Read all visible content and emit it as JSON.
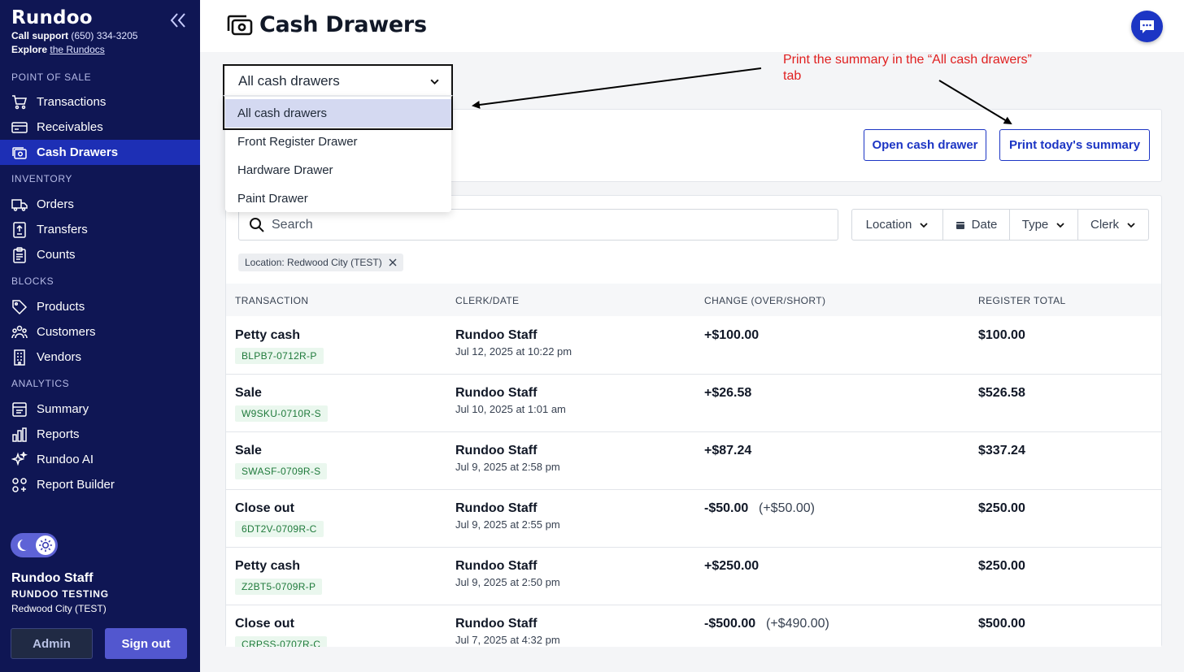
{
  "sidebar": {
    "brand": "Rundoo",
    "support_label": "Call support",
    "support_phone": "(650) 334-3205",
    "explore_label": "Explore",
    "explore_link": "the Rundocs",
    "sections": {
      "pos": "POINT OF SALE",
      "inventory": "INVENTORY",
      "blocks": "BLOCKS",
      "analytics": "ANALYTICS"
    },
    "items": [
      {
        "label": "Transactions"
      },
      {
        "label": "Receivables"
      },
      {
        "label": "Cash Drawers"
      },
      {
        "label": "Orders"
      },
      {
        "label": "Transfers"
      },
      {
        "label": "Counts"
      },
      {
        "label": "Products"
      },
      {
        "label": "Customers"
      },
      {
        "label": "Vendors"
      },
      {
        "label": "Summary"
      },
      {
        "label": "Reports"
      },
      {
        "label": "Rundoo AI"
      },
      {
        "label": "Report Builder"
      }
    ],
    "active_item": "Cash Drawers",
    "user": {
      "name": "Rundoo Staff",
      "org": "RUNDOO TESTING",
      "location": "Redwood City (TEST)"
    },
    "admin_label": "Admin",
    "signout_label": "Sign out"
  },
  "header": {
    "title": "Cash Drawers"
  },
  "drawer_select": {
    "value": "All cash drawers",
    "options": [
      "All cash drawers",
      "Front Register Drawer",
      "Hardware Drawer",
      "Paint Drawer"
    ]
  },
  "actions": {
    "open_drawer": "Open cash drawer",
    "print_summary": "Print today's summary"
  },
  "search": {
    "placeholder": "Search"
  },
  "filters": {
    "location": "Location",
    "date": "Date",
    "type": "Type",
    "clerk": "Clerk"
  },
  "active_filter": "Location: Redwood City (TEST)",
  "table": {
    "columns": [
      "TRANSACTION",
      "CLERK/DATE",
      "CHANGE (OVER/SHORT)",
      "REGISTER TOTAL"
    ],
    "rows": [
      {
        "type": "Petty cash",
        "ref": "BLPB7-0712R-P",
        "clerk": "Rundoo Staff",
        "date": "Jul 12, 2025 at 10:22 pm",
        "change": "+$100.00",
        "over": "",
        "total": "$100.00"
      },
      {
        "type": "Sale",
        "ref": "W9SKU-0710R-S",
        "clerk": "Rundoo Staff",
        "date": "Jul 10, 2025 at 1:01 am",
        "change": "+$26.58",
        "over": "",
        "total": "$526.58"
      },
      {
        "type": "Sale",
        "ref": "SWASF-0709R-S",
        "clerk": "Rundoo Staff",
        "date": "Jul 9, 2025 at 2:58 pm",
        "change": "+$87.24",
        "over": "",
        "total": "$337.24"
      },
      {
        "type": "Close out",
        "ref": "6DT2V-0709R-C",
        "clerk": "Rundoo Staff",
        "date": "Jul 9, 2025 at 2:55 pm",
        "change": "-$50.00",
        "over": "(+$50.00)",
        "total": "$250.00"
      },
      {
        "type": "Petty cash",
        "ref": "Z2BT5-0709R-P",
        "clerk": "Rundoo Staff",
        "date": "Jul 9, 2025 at 2:50 pm",
        "change": "+$250.00",
        "over": "",
        "total": "$250.00"
      },
      {
        "type": "Close out",
        "ref": "CRPSS-0707R-C",
        "clerk": "Rundoo Staff",
        "date": "Jul 7, 2025 at 4:32 pm",
        "change": "-$500.00",
        "over": "(+$490.00)",
        "total": "$500.00"
      }
    ]
  },
  "annotation": {
    "text_line1": "Print the summary in the “All cash drawers”",
    "text_line2": "tab",
    "color": "#e02020"
  },
  "colors": {
    "sidebar_bg": "#0f1654",
    "accent": "#1c35c4",
    "active_nav": "#1d2fb5"
  }
}
